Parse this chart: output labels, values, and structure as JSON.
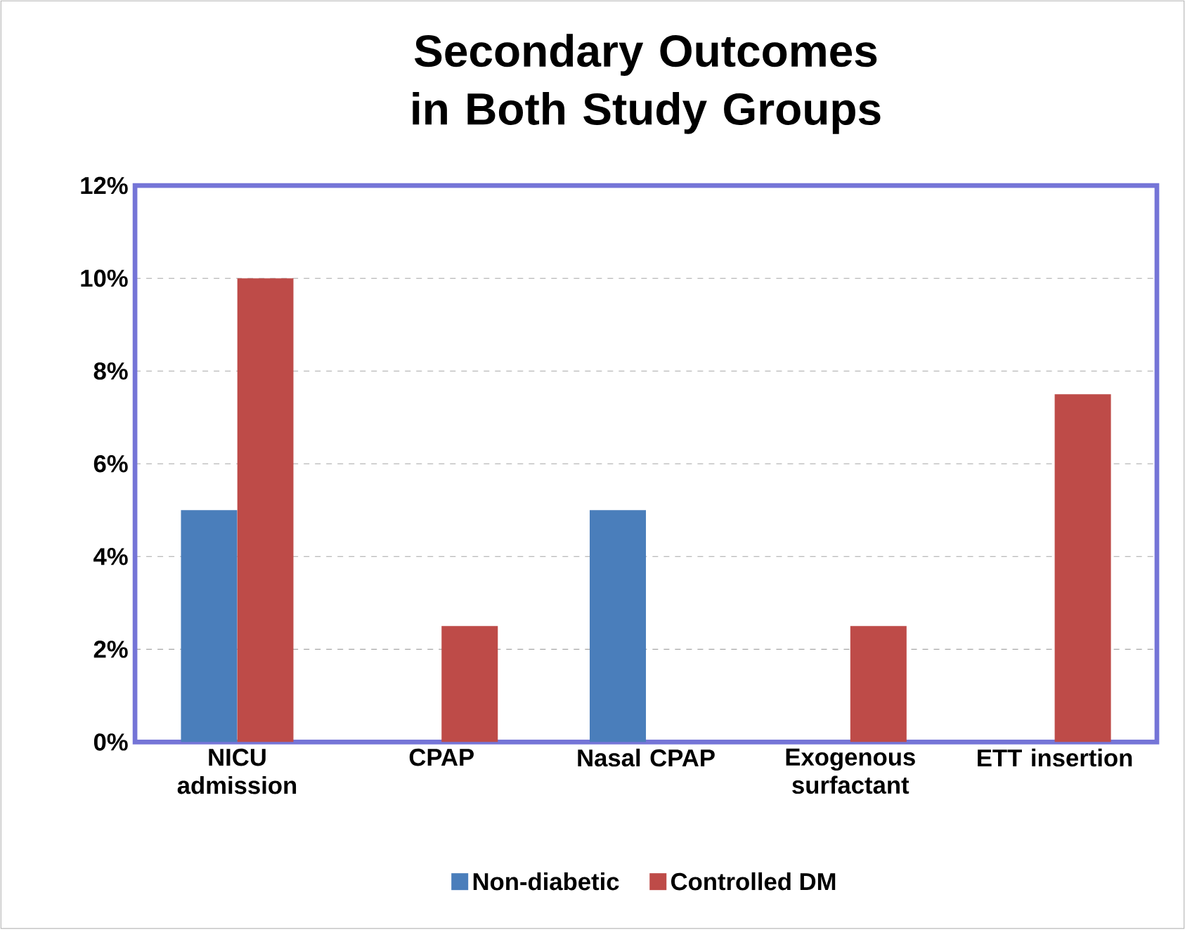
{
  "chart_data": {
    "type": "bar",
    "title": "Secondary Outcomes in Both Study Groups",
    "categories": [
      "NICU admission",
      "CPAP",
      "Nasal CPAP",
      "Exogenous surfactant",
      "ETT insertion"
    ],
    "series": [
      {
        "name": "Non-diabetic",
        "color": "#4a7ebb",
        "values": [
          5,
          0,
          5,
          0,
          0
        ]
      },
      {
        "name": "Controlled DM",
        "color": "#be4b48",
        "values": [
          10,
          2.5,
          0,
          2.5,
          7.5
        ]
      }
    ],
    "ylim": [
      0,
      12
    ],
    "yticks": [
      {
        "value": 0,
        "label": "0%"
      },
      {
        "value": 2,
        "label": "2%"
      },
      {
        "value": 4,
        "label": "4%"
      },
      {
        "value": 6,
        "label": "6%"
      },
      {
        "value": 8,
        "label": "8%"
      },
      {
        "value": 10,
        "label": "10%"
      },
      {
        "value": 12,
        "label": "12%"
      }
    ],
    "grid": "y",
    "legend": "bottom"
  }
}
